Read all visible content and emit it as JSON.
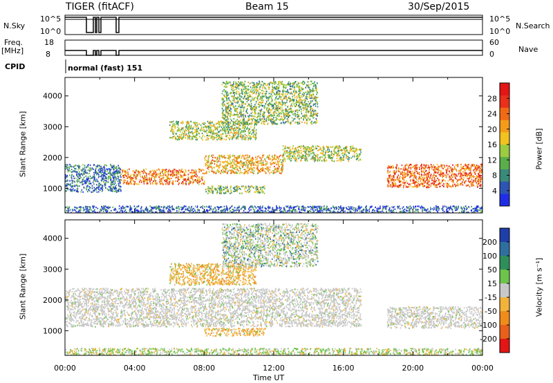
{
  "header": {
    "radar": "TIGER (fitACF)",
    "beam": "Beam 15",
    "date": "30/Sep/2015"
  },
  "aux_labels": {
    "nsky": "N.Sky",
    "nsky_top": "10^5",
    "nsky_bottom": "10^0",
    "nsearch": "N.Search",
    "nsearch_top": "10^5",
    "nsearch_bottom": "10^0",
    "freq": "Freq.",
    "freq_unit": "[MHz]",
    "freq_top": "18",
    "freq_bottom": "8",
    "nave": "Nave",
    "nave_top": "60",
    "nave_bottom": "0",
    "cpid": "CPID",
    "cpid_value": "normal (fast) 151"
  },
  "chart_data": [
    {
      "type": "heatmap",
      "panel": "power",
      "ylabel": "Slant Range [km]",
      "ylim": [
        200,
        4600
      ],
      "yticks": [
        "1000",
        "2000",
        "3000",
        "4000"
      ],
      "colorbar_label": "Power [dB]",
      "colorbar_ticks": [
        "4",
        "8",
        "12",
        "16",
        "20",
        "24",
        "28"
      ],
      "colorbar_colors": [
        "#1f2ee6",
        "#2d55b3",
        "#3a8a7a",
        "#5aae4a",
        "#9ccc40",
        "#f2c21f",
        "#f59b1a",
        "#f06a14",
        "#e8301a",
        "#e31515"
      ],
      "bands": [
        {
          "x": [
            0.0,
            3.2
          ],
          "y": [
            900,
            1800
          ],
          "level": 0.2
        },
        {
          "x": [
            3.2,
            8.0
          ],
          "y": [
            1150,
            1650
          ],
          "level": 0.7
        },
        {
          "x": [
            8.0,
            12.5
          ],
          "y": [
            1500,
            2100
          ],
          "level": 0.6
        },
        {
          "x": [
            12.5,
            17.0
          ],
          "y": [
            1900,
            2400
          ],
          "level": 0.45
        },
        {
          "x": [
            6.0,
            11.0
          ],
          "y": [
            2600,
            3200
          ],
          "level": 0.45
        },
        {
          "x": [
            9.0,
            14.5
          ],
          "y": [
            3100,
            4500
          ],
          "level": 0.4
        },
        {
          "x": [
            8.0,
            11.5
          ],
          "y": [
            850,
            1100
          ],
          "level": 0.4
        },
        {
          "x": [
            18.5,
            24.0
          ],
          "y": [
            1050,
            1800
          ],
          "level": 0.75
        },
        {
          "x": [
            0.0,
            24.0
          ],
          "y": [
            200,
            450
          ],
          "level": 0.15
        }
      ]
    },
    {
      "type": "heatmap",
      "panel": "velocity",
      "ylabel": "Slant Range [km]",
      "xlabel": "Time UT",
      "ylim": [
        200,
        4600
      ],
      "yticks": [
        "1000",
        "2000",
        "3000",
        "4000"
      ],
      "xticks": [
        "00:00",
        "04:00",
        "08:00",
        "12:00",
        "16:00",
        "20:00",
        "00:00"
      ],
      "colorbar_label": "Velocity [m s⁻¹]",
      "colorbar_ticks": [
        "200",
        "100",
        "50",
        "15",
        "-15",
        "-50",
        "-100",
        "-200"
      ],
      "colorbar_colors": [
        "#1f3ea8",
        "#2f6fa0",
        "#2f8f5a",
        "#6cc44a",
        "#c8c8c8",
        "#f2b33a",
        "#f08c1a",
        "#e8601a",
        "#e31515"
      ],
      "bands": [
        {
          "x": [
            0.0,
            17.0
          ],
          "y": [
            1150,
            2400
          ],
          "kind": "ground"
        },
        {
          "x": [
            18.5,
            24.0
          ],
          "y": [
            1100,
            1800
          ],
          "kind": "ground"
        },
        {
          "x": [
            6.0,
            11.0
          ],
          "y": [
            2500,
            3200
          ],
          "kind": "negative"
        },
        {
          "x": [
            8.0,
            11.5
          ],
          "y": [
            850,
            1100
          ],
          "kind": "negative"
        },
        {
          "x": [
            9.0,
            14.5
          ],
          "y": [
            3100,
            4500
          ],
          "kind": "mixed"
        },
        {
          "x": [
            0.0,
            24.0
          ],
          "y": [
            200,
            450
          ],
          "kind": "low"
        }
      ]
    }
  ]
}
